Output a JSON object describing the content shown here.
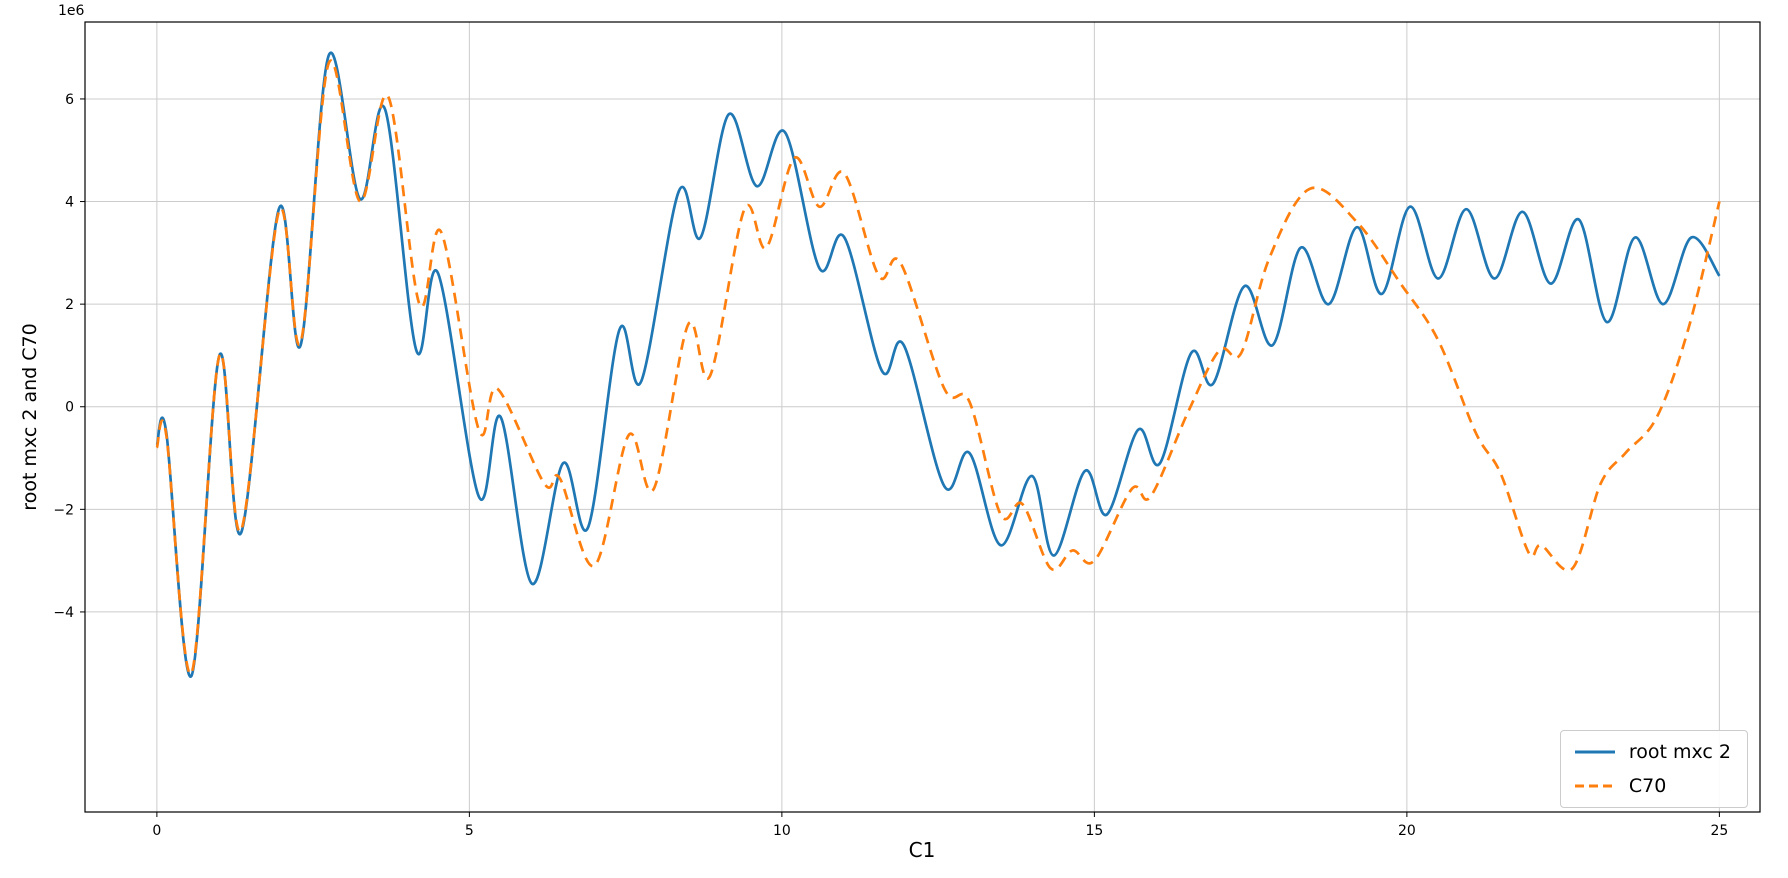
{
  "figure": {
    "background": "#ffffff"
  },
  "chart_data": {
    "type": "line",
    "title": "",
    "xlabel": "C1",
    "ylabel": "root mxc 2 and C70",
    "y_offset_label": "1e6",
    "y_unit_scale": 1000000,
    "xlim": [
      -1.15,
      25.65
    ],
    "ylim_e6": [
      -7.9,
      7.5
    ],
    "x_ticks": [
      0,
      5,
      10,
      15,
      20,
      25
    ],
    "y_ticks_e6": [
      -4,
      -2,
      0,
      2,
      4,
      6
    ],
    "grid": true,
    "legend_location": "lower right",
    "series": [
      {
        "name": "root mxc 2",
        "color": "#1f77b4",
        "dash": "solid",
        "points_e6": [
          [
            0,
            -0.75
          ],
          [
            0.15,
            -0.5
          ],
          [
            0.55,
            -5.25
          ],
          [
            1.0,
            1.0
          ],
          [
            1.35,
            -2.45
          ],
          [
            1.95,
            3.85
          ],
          [
            2.3,
            1.2
          ],
          [
            2.75,
            6.85
          ],
          [
            3.25,
            4.05
          ],
          [
            3.65,
            5.8
          ],
          [
            4.15,
            1.1
          ],
          [
            4.5,
            2.6
          ],
          [
            5.15,
            -1.75
          ],
          [
            5.5,
            -0.2
          ],
          [
            6.0,
            -3.45
          ],
          [
            6.5,
            -1.1
          ],
          [
            6.9,
            -2.35
          ],
          [
            7.4,
            1.5
          ],
          [
            7.75,
            0.5
          ],
          [
            8.35,
            4.2
          ],
          [
            8.7,
            3.3
          ],
          [
            9.15,
            5.7
          ],
          [
            9.6,
            4.3
          ],
          [
            10.05,
            5.35
          ],
          [
            10.6,
            2.7
          ],
          [
            11.0,
            3.3
          ],
          [
            11.6,
            0.7
          ],
          [
            11.95,
            1.2
          ],
          [
            12.6,
            -1.55
          ],
          [
            13.0,
            -0.9
          ],
          [
            13.5,
            -2.7
          ],
          [
            14.0,
            -1.35
          ],
          [
            14.35,
            -2.9
          ],
          [
            14.85,
            -1.25
          ],
          [
            15.2,
            -2.1
          ],
          [
            15.7,
            -0.45
          ],
          [
            16.05,
            -1.1
          ],
          [
            16.55,
            1.05
          ],
          [
            16.9,
            0.45
          ],
          [
            17.4,
            2.35
          ],
          [
            17.85,
            1.2
          ],
          [
            18.3,
            3.1
          ],
          [
            18.75,
            2.0
          ],
          [
            19.2,
            3.5
          ],
          [
            19.6,
            2.2
          ],
          [
            20.05,
            3.9
          ],
          [
            20.5,
            2.5
          ],
          [
            20.95,
            3.85
          ],
          [
            21.4,
            2.5
          ],
          [
            21.85,
            3.8
          ],
          [
            22.3,
            2.4
          ],
          [
            22.75,
            3.65
          ],
          [
            23.2,
            1.65
          ],
          [
            23.65,
            3.3
          ],
          [
            24.1,
            2.0
          ],
          [
            24.55,
            3.3
          ],
          [
            25.0,
            2.55
          ]
        ]
      },
      {
        "name": "C70",
        "color": "#ff7f0e",
        "dash": "dashed",
        "points_e6": [
          [
            0,
            -0.8
          ],
          [
            0.15,
            -0.55
          ],
          [
            0.55,
            -5.2
          ],
          [
            1.0,
            1.0
          ],
          [
            1.35,
            -2.4
          ],
          [
            1.95,
            3.8
          ],
          [
            2.3,
            1.25
          ],
          [
            2.75,
            6.7
          ],
          [
            3.25,
            4.0
          ],
          [
            3.7,
            6.05
          ],
          [
            4.2,
            2.0
          ],
          [
            4.55,
            3.4
          ],
          [
            5.15,
            -0.45
          ],
          [
            5.45,
            0.35
          ],
          [
            6.2,
            -1.5
          ],
          [
            6.45,
            -1.4
          ],
          [
            7.0,
            -3.1
          ],
          [
            7.55,
            -0.55
          ],
          [
            7.95,
            -1.6
          ],
          [
            8.5,
            1.6
          ],
          [
            8.85,
            0.6
          ],
          [
            9.4,
            3.85
          ],
          [
            9.75,
            3.1
          ],
          [
            10.2,
            4.85
          ],
          [
            10.6,
            3.9
          ],
          [
            11.0,
            4.55
          ],
          [
            11.55,
            2.55
          ],
          [
            11.9,
            2.8
          ],
          [
            12.6,
            0.35
          ],
          [
            13.0,
            0.1
          ],
          [
            13.5,
            -2.1
          ],
          [
            13.85,
            -1.9
          ],
          [
            14.3,
            -3.15
          ],
          [
            14.65,
            -2.8
          ],
          [
            15.0,
            -3.0
          ],
          [
            15.6,
            -1.6
          ],
          [
            15.9,
            -1.75
          ],
          [
            16.5,
            -0.1
          ],
          [
            17.0,
            1.1
          ],
          [
            17.35,
            1.05
          ],
          [
            17.8,
            2.9
          ],
          [
            18.45,
            4.25
          ],
          [
            19.2,
            3.6
          ],
          [
            19.9,
            2.4
          ],
          [
            20.5,
            1.3
          ],
          [
            21.1,
            -0.5
          ],
          [
            21.5,
            -1.3
          ],
          [
            21.95,
            -2.85
          ],
          [
            22.15,
            -2.7
          ],
          [
            22.65,
            -3.15
          ],
          [
            23.1,
            -1.5
          ],
          [
            23.5,
            -0.9
          ],
          [
            24.0,
            -0.2
          ],
          [
            24.5,
            1.5
          ],
          [
            25.0,
            4.0
          ]
        ]
      }
    ]
  },
  "legend": {
    "items": [
      {
        "label": "root mxc 2"
      },
      {
        "label": "C70"
      }
    ]
  }
}
